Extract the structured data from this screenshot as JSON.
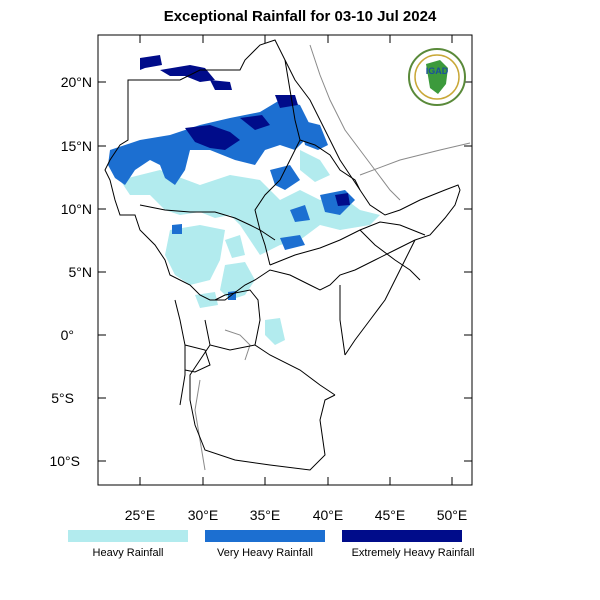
{
  "title": "Exceptional Rainfall for 03-10 Jul 2024",
  "logo_text": "IGAD",
  "lat_labels": [
    "20°N",
    "15°N",
    "10°N",
    "5°N",
    "0°",
    "5°S",
    "10°S"
  ],
  "lon_labels": [
    "25°E",
    "30°E",
    "35°E",
    "40°E",
    "45°E",
    "50°E"
  ],
  "legend": [
    {
      "label": "Heavy Rainfall",
      "color": "#b2ebee"
    },
    {
      "label": "Very Heavy Rainfall",
      "color": "#1c6fd1"
    },
    {
      "label": "Extremely Heavy Rainfall",
      "color": "#000c8a"
    }
  ],
  "colors": {
    "heavy": "#b2ebee",
    "very_heavy": "#1c6fd1",
    "extreme": "#000c8a",
    "border": "#000000",
    "coast": "#8a8a8a"
  }
}
